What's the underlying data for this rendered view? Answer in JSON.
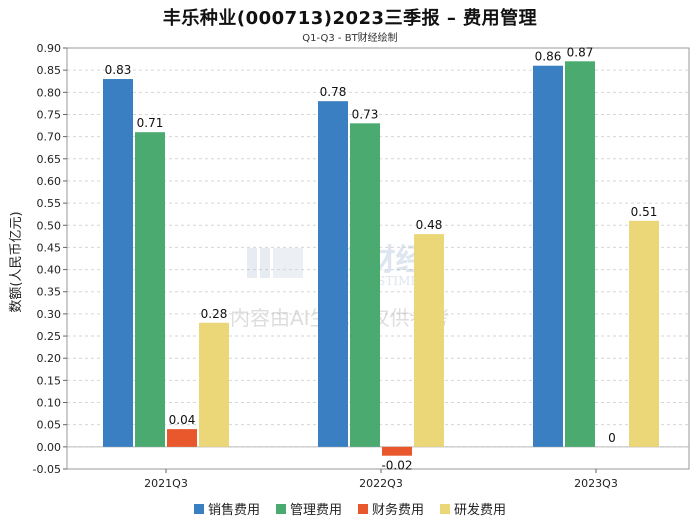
{
  "chart_data": {
    "type": "bar",
    "title": "丰乐种业(000713)2023三季报 – 费用管理",
    "subtitle": "Q1-Q3 - BT财经绘制",
    "ylabel": "数额(人民币亿元)",
    "xlabel": "",
    "categories": [
      "2021Q3",
      "2022Q3",
      "2023Q3"
    ],
    "ylim": [
      -0.05,
      0.9
    ],
    "yticks": [
      "0.90",
      "0.85",
      "0.80",
      "0.75",
      "0.70",
      "0.65",
      "0.60",
      "0.55",
      "0.50",
      "0.45",
      "0.40",
      "0.35",
      "0.30",
      "0.25",
      "0.20",
      "0.15",
      "0.10",
      "0.05",
      "0.00",
      "-0.05"
    ],
    "series": [
      {
        "name": "销售费用",
        "color": "#3a7fc1",
        "values": [
          0.83,
          0.78,
          0.86
        ],
        "labels": [
          "0.83",
          "0.78",
          "0.86"
        ]
      },
      {
        "name": "管理费用",
        "color": "#4aaa6f",
        "values": [
          0.71,
          0.73,
          0.87
        ],
        "labels": [
          "0.71",
          "0.73",
          "0.87"
        ]
      },
      {
        "name": "财务费用",
        "color": "#e8582c",
        "values": [
          0.04,
          -0.02,
          0
        ],
        "labels": [
          "0.04",
          "-0.02",
          "0"
        ]
      },
      {
        "name": "研发费用",
        "color": "#ebd678",
        "values": [
          0.28,
          0.48,
          0.51
        ],
        "labels": [
          "0.28",
          "0.48",
          "0.51"
        ]
      }
    ],
    "legend_position": "bottom"
  },
  "watermark": {
    "brand": "BT财经",
    "brand_en": "BUSINESSTIMES",
    "notice": "内容由AI生成，仅供参考"
  }
}
